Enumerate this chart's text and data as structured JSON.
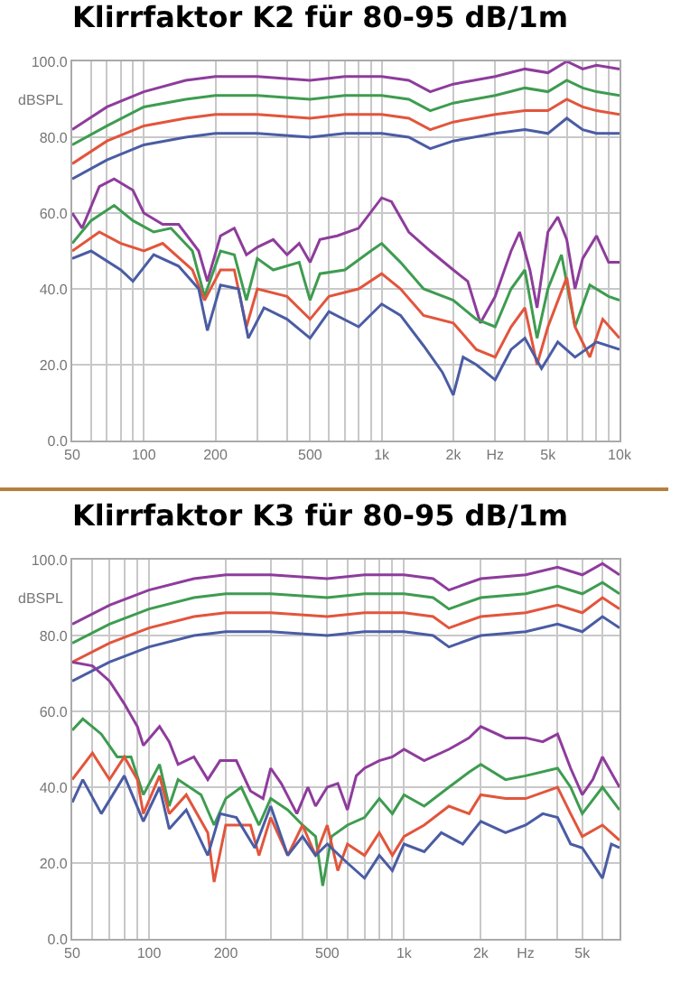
{
  "chart_data": [
    {
      "type": "line",
      "title": "Klirrfaktor K2 für 80-95 dB/1m",
      "ylabel": "dBSPL",
      "log": "x",
      "grid": true,
      "xlim": [
        50,
        10000
      ],
      "ylim": [
        0,
        100
      ],
      "xticks": [
        50,
        {
          "value": 60,
          "label": null
        },
        {
          "value": 70,
          "label": null
        },
        {
          "value": 80,
          "label": null
        },
        {
          "value": 90,
          "label": null
        },
        100,
        200,
        {
          "value": 300,
          "label": null
        },
        {
          "value": 400,
          "label": null
        },
        500,
        {
          "value": 600,
          "label": null
        },
        {
          "value": 700,
          "label": null
        },
        {
          "value": 800,
          "label": null
        },
        {
          "value": 900,
          "label": null
        },
        {
          "value": 1000,
          "label": "1k"
        },
        {
          "value": 2000,
          "label": "2k"
        },
        {
          "value": 3000,
          "label": "Hz"
        },
        {
          "value": 4000,
          "label": null
        },
        {
          "value": 5000,
          "label": "5k"
        },
        {
          "value": 6000,
          "label": null
        },
        {
          "value": 7000,
          "label": null
        },
        {
          "value": 8000,
          "label": null
        },
        {
          "value": 9000,
          "label": null
        },
        {
          "value": 10000,
          "label": "10k"
        }
      ],
      "yticks": [
        {
          "value": 0,
          "label": "0.0"
        },
        {
          "value": 20,
          "label": "20.0"
        },
        {
          "value": 40,
          "label": "40.0"
        },
        {
          "value": 60,
          "label": "60.0"
        },
        {
          "value": 80,
          "label": "80.0"
        },
        {
          "value": 100,
          "label": "100.0"
        }
      ],
      "series": [
        {
          "color": "#8e3c9c",
          "x": [
            50,
            70,
            100,
            150,
            200,
            300,
            500,
            700,
            1000,
            1300,
            1600,
            2000,
            3000,
            4000,
            5000,
            6000,
            7000,
            8000,
            10000
          ],
          "values": [
            82,
            88,
            92,
            95,
            96,
            96,
            95,
            96,
            96,
            95,
            92,
            94,
            96,
            98,
            97,
            100,
            98,
            99,
            98
          ]
        },
        {
          "color": "#3e9c50",
          "x": [
            50,
            70,
            100,
            150,
            200,
            300,
            500,
            700,
            1000,
            1300,
            1600,
            2000,
            3000,
            4000,
            5000,
            6000,
            7000,
            8000,
            10000
          ],
          "values": [
            78,
            83,
            88,
            90,
            91,
            91,
            90,
            91,
            91,
            90,
            87,
            89,
            91,
            93,
            92,
            95,
            93,
            92,
            91
          ]
        },
        {
          "color": "#e2553c",
          "x": [
            50,
            70,
            100,
            150,
            200,
            300,
            500,
            700,
            1000,
            1300,
            1600,
            2000,
            3000,
            4000,
            5000,
            6000,
            7000,
            8000,
            10000
          ],
          "values": [
            73,
            79,
            83,
            85,
            86,
            86,
            85,
            86,
            86,
            85,
            82,
            84,
            86,
            87,
            87,
            90,
            88,
            87,
            86
          ]
        },
        {
          "color": "#4a5ca4",
          "x": [
            50,
            70,
            100,
            150,
            200,
            300,
            500,
            700,
            1000,
            1300,
            1600,
            2000,
            3000,
            4000,
            5000,
            6000,
            7000,
            8000,
            10000
          ],
          "values": [
            69,
            74,
            78,
            80,
            81,
            81,
            80,
            81,
            81,
            80,
            77,
            79,
            81,
            82,
            81,
            85,
            82,
            81,
            81
          ]
        },
        {
          "color": "#8e3c9c",
          "x": [
            50,
            55,
            65,
            75,
            90,
            100,
            120,
            140,
            170,
            185,
            210,
            240,
            270,
            300,
            350,
            400,
            450,
            500,
            550,
            650,
            800,
            1000,
            1100,
            1300,
            1600,
            2000,
            2300,
            2600,
            3000,
            3500,
            3800,
            4200,
            4500,
            5000,
            5500,
            6000,
            6500,
            7000,
            8000,
            9000,
            10000
          ],
          "values": [
            60,
            56,
            67,
            69,
            66,
            60,
            57,
            57,
            50,
            42,
            54,
            56,
            49,
            51,
            53,
            49,
            52,
            47,
            53,
            54,
            56,
            64,
            63,
            55,
            50,
            45,
            42,
            31,
            38,
            50,
            55,
            45,
            35,
            55,
            59,
            53,
            40,
            48,
            54,
            47,
            47
          ]
        },
        {
          "color": "#3e9c50",
          "x": [
            50,
            60,
            75,
            90,
            110,
            130,
            160,
            180,
            210,
            240,
            270,
            300,
            350,
            450,
            500,
            550,
            700,
            900,
            1000,
            1200,
            1500,
            2000,
            2500,
            3000,
            3500,
            4000,
            4500,
            5000,
            5700,
            6500,
            7500,
            9000,
            10000
          ],
          "values": [
            52,
            58,
            62,
            58,
            55,
            56,
            50,
            38,
            50,
            49,
            37,
            48,
            45,
            47,
            37,
            44,
            45,
            50,
            52,
            47,
            40,
            37,
            32,
            30,
            40,
            45,
            27,
            40,
            49,
            30,
            41,
            38,
            37
          ]
        },
        {
          "color": "#e2553c",
          "x": [
            50,
            65,
            80,
            100,
            120,
            160,
            180,
            210,
            240,
            270,
            300,
            400,
            500,
            600,
            800,
            1000,
            1200,
            1500,
            2000,
            2500,
            3000,
            3500,
            4000,
            4500,
            5000,
            6000,
            6500,
            7500,
            8500,
            10000
          ],
          "values": [
            50,
            55,
            52,
            50,
            52,
            45,
            37,
            45,
            45,
            30,
            40,
            38,
            32,
            38,
            40,
            44,
            40,
            33,
            31,
            24,
            22,
            30,
            35,
            20,
            30,
            43,
            30,
            22,
            32,
            27
          ]
        },
        {
          "color": "#4a5ca4",
          "x": [
            50,
            60,
            80,
            90,
            110,
            140,
            170,
            185,
            210,
            250,
            275,
            320,
            400,
            500,
            600,
            800,
            1000,
            1200,
            1500,
            1800,
            2000,
            2200,
            2500,
            3000,
            3500,
            4000,
            4700,
            5500,
            6500,
            8000,
            10000
          ],
          "values": [
            48,
            50,
            45,
            42,
            49,
            46,
            40,
            29,
            41,
            40,
            27,
            35,
            32,
            27,
            34,
            30,
            36,
            33,
            25,
            18,
            12,
            22,
            20,
            16,
            24,
            27,
            19,
            26,
            22,
            26,
            24
          ]
        }
      ]
    },
    {
      "type": "line",
      "title": "Klirrfaktor K3 für 80-95 dB/1m",
      "ylabel": "dBSPL",
      "log": "x",
      "grid": true,
      "xlim": [
        50,
        7000
      ],
      "ylim": [
        0,
        100
      ],
      "xticks": [
        50,
        {
          "value": 60,
          "label": null
        },
        {
          "value": 70,
          "label": null
        },
        {
          "value": 80,
          "label": null
        },
        {
          "value": 90,
          "label": null
        },
        100,
        200,
        {
          "value": 300,
          "label": null
        },
        {
          "value": 400,
          "label": null
        },
        500,
        {
          "value": 600,
          "label": null
        },
        {
          "value": 700,
          "label": null
        },
        {
          "value": 800,
          "label": null
        },
        {
          "value": 900,
          "label": null
        },
        {
          "value": 1000,
          "label": "1k"
        },
        {
          "value": 2000,
          "label": "2k"
        },
        {
          "value": 3000,
          "label": "Hz"
        },
        {
          "value": 4000,
          "label": null
        },
        {
          "value": 5000,
          "label": "5k"
        },
        {
          "value": 6000,
          "label": null
        },
        {
          "value": 7000,
          "label": null
        }
      ],
      "yticks": [
        {
          "value": 0,
          "label": "0.0"
        },
        {
          "value": 20,
          "label": "20.0"
        },
        {
          "value": 40,
          "label": "40.0"
        },
        {
          "value": 60,
          "label": "60.0"
        },
        {
          "value": 80,
          "label": "80.0"
        },
        {
          "value": 100,
          "label": "100.0"
        }
      ],
      "series": [
        {
          "color": "#8e3c9c",
          "x": [
            50,
            70,
            100,
            150,
            200,
            300,
            500,
            700,
            1000,
            1300,
            1500,
            2000,
            3000,
            4000,
            5000,
            6000,
            7000
          ],
          "values": [
            83,
            88,
            92,
            95,
            96,
            96,
            95,
            96,
            96,
            95,
            92,
            95,
            96,
            98,
            96,
            99,
            96
          ]
        },
        {
          "color": "#3e9c50",
          "x": [
            50,
            70,
            100,
            150,
            200,
            300,
            500,
            700,
            1000,
            1300,
            1500,
            2000,
            3000,
            4000,
            5000,
            6000,
            7000
          ],
          "values": [
            78,
            83,
            87,
            90,
            91,
            91,
            90,
            91,
            91,
            90,
            87,
            90,
            91,
            93,
            91,
            94,
            91
          ]
        },
        {
          "color": "#e2553c",
          "x": [
            50,
            70,
            100,
            150,
            200,
            300,
            500,
            700,
            1000,
            1300,
            1500,
            2000,
            3000,
            4000,
            5000,
            6000,
            7000
          ],
          "values": [
            73,
            78,
            82,
            85,
            86,
            86,
            85,
            86,
            86,
            85,
            82,
            85,
            86,
            88,
            86,
            90,
            87
          ]
        },
        {
          "color": "#4a5ca4",
          "x": [
            50,
            70,
            100,
            150,
            200,
            300,
            500,
            700,
            1000,
            1300,
            1500,
            2000,
            3000,
            4000,
            5000,
            6000,
            7000
          ],
          "values": [
            68,
            73,
            77,
            80,
            81,
            81,
            80,
            81,
            81,
            80,
            77,
            80,
            81,
            83,
            81,
            85,
            82
          ]
        },
        {
          "color": "#8e3c9c",
          "x": [
            50,
            60,
            70,
            80,
            90,
            95,
            110,
            120,
            130,
            150,
            170,
            190,
            220,
            250,
            280,
            300,
            330,
            380,
            420,
            450,
            500,
            550,
            600,
            650,
            700,
            800,
            900,
            1000,
            1200,
            1500,
            1800,
            2000,
            2500,
            3000,
            3500,
            4000,
            4500,
            5000,
            5500,
            6000,
            7000
          ],
          "values": [
            73,
            72,
            68,
            62,
            56,
            51,
            56,
            52,
            46,
            48,
            42,
            47,
            47,
            39,
            37,
            45,
            41,
            33,
            40,
            35,
            40,
            41,
            34,
            43,
            45,
            47,
            48,
            50,
            47,
            50,
            53,
            56,
            53,
            53,
            52,
            54,
            45,
            38,
            42,
            48,
            40
          ]
        },
        {
          "color": "#3e9c50",
          "x": [
            50,
            55,
            65,
            75,
            85,
            95,
            110,
            120,
            130,
            160,
            180,
            200,
            230,
            270,
            300,
            350,
            400,
            450,
            480,
            520,
            600,
            700,
            800,
            900,
            1000,
            1200,
            1500,
            1800,
            2000,
            2500,
            3000,
            4000,
            4500,
            5000,
            6000,
            7000
          ],
          "values": [
            55,
            58,
            54,
            48,
            48,
            38,
            46,
            35,
            42,
            38,
            30,
            37,
            40,
            30,
            37,
            34,
            30,
            27,
            14,
            27,
            30,
            32,
            37,
            33,
            38,
            35,
            40,
            44,
            46,
            42,
            43,
            45,
            40,
            33,
            40,
            34
          ]
        },
        {
          "color": "#e2553c",
          "x": [
            50,
            60,
            70,
            80,
            90,
            95,
            110,
            120,
            140,
            170,
            180,
            200,
            250,
            270,
            300,
            350,
            400,
            450,
            500,
            550,
            600,
            700,
            800,
            900,
            1000,
            1200,
            1500,
            1800,
            2000,
            2500,
            3000,
            4000,
            4500,
            5000,
            6000,
            7000
          ],
          "values": [
            42,
            49,
            42,
            48,
            42,
            33,
            43,
            33,
            38,
            28,
            15,
            30,
            30,
            22,
            32,
            22,
            30,
            22,
            30,
            18,
            25,
            22,
            28,
            22,
            27,
            30,
            35,
            33,
            38,
            37,
            37,
            40,
            33,
            27,
            30,
            26
          ]
        },
        {
          "color": "#4a5ca4",
          "x": [
            50,
            55,
            65,
            80,
            95,
            110,
            120,
            140,
            170,
            190,
            220,
            260,
            300,
            350,
            400,
            450,
            500,
            600,
            700,
            800,
            900,
            1000,
            1200,
            1400,
            1700,
            2000,
            2500,
            3000,
            3500,
            4000,
            4500,
            5000,
            6000,
            6500,
            7000
          ],
          "values": [
            36,
            42,
            33,
            43,
            31,
            40,
            29,
            34,
            22,
            33,
            32,
            24,
            35,
            22,
            27,
            22,
            25,
            20,
            16,
            22,
            18,
            25,
            23,
            28,
            25,
            31,
            28,
            30,
            33,
            32,
            25,
            24,
            16,
            25,
            24
          ]
        }
      ]
    }
  ]
}
